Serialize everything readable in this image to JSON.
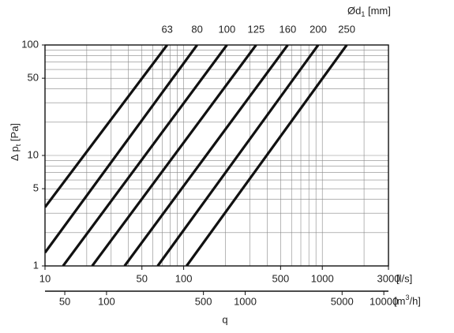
{
  "chart_data": {
    "type": "line",
    "xlabel": "q",
    "xunit": "[l/s]",
    "ylabel": [
      "Δ p",
      "t",
      " [Pa]"
    ],
    "series_title": [
      "Ød",
      "1",
      " [mm]"
    ],
    "x2unit": [
      "[m",
      "3",
      "/h]"
    ],
    "xlog": true,
    "ylog": true,
    "grid": true,
    "xlim": [
      10,
      3000
    ],
    "xticks": [
      10,
      50,
      100,
      500,
      1000,
      3000
    ],
    "xgrid": [
      20,
      30,
      40,
      50,
      60,
      70,
      80,
      90,
      100,
      200,
      300,
      400,
      500,
      600,
      700,
      800,
      900,
      1000,
      2000
    ],
    "ylim": [
      1,
      100
    ],
    "yticks": [
      1,
      5,
      10,
      50,
      100
    ],
    "ygrid": [
      2,
      3,
      4,
      5,
      6,
      7,
      8,
      9,
      10,
      20,
      30,
      40,
      50,
      60,
      70,
      80,
      90
    ],
    "x2lim": [
      36,
      10800
    ],
    "x2ticks": [
      50,
      100,
      500,
      1000,
      5000,
      10000
    ],
    "series": [
      {
        "name": "63",
        "color": "#111111",
        "x": [
          10,
          76
        ],
        "values": [
          3.4,
          100
        ]
      },
      {
        "name": "80",
        "color": "#111111",
        "x": [
          10,
          125
        ],
        "values": [
          1.32,
          100
        ]
      },
      {
        "name": "100",
        "color": "#111111",
        "x": [
          13.5,
          205
        ],
        "values": [
          1,
          100
        ]
      },
      {
        "name": "125",
        "color": "#111111",
        "x": [
          21.9,
          333
        ],
        "values": [
          1,
          100
        ]
      },
      {
        "name": "160",
        "color": "#111111",
        "x": [
          37.5,
          563
        ],
        "values": [
          1,
          100
        ]
      },
      {
        "name": "200",
        "color": "#111111",
        "x": [
          65,
          934
        ],
        "values": [
          1,
          100
        ]
      },
      {
        "name": "250",
        "color": "#111111",
        "x": [
          105,
          1500
        ],
        "values": [
          1,
          100
        ]
      }
    ]
  }
}
